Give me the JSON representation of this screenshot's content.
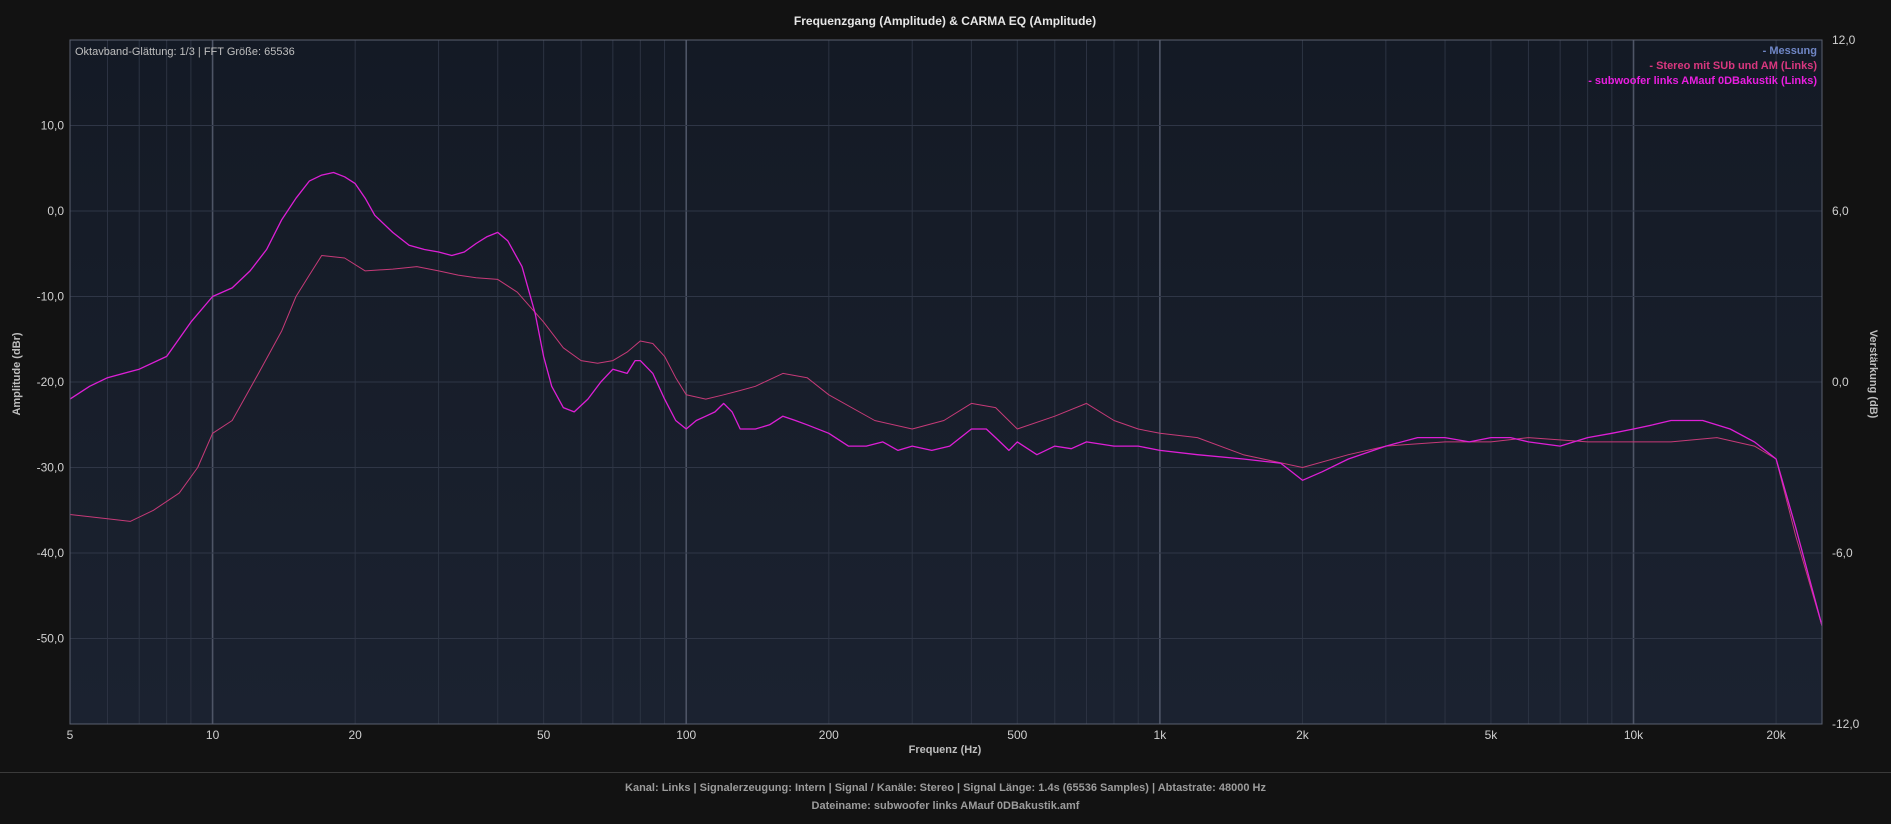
{
  "chart_data": {
    "type": "line",
    "title": "Frequenzgang (Amplitude) & CARMA EQ (Amplitude)",
    "xlabel": "Frequenz (Hz)",
    "ylabel": "Amplitude (dBr)",
    "y2label": "Verstärkung (dB)",
    "xscale": "log",
    "xlim": [
      5,
      25000
    ],
    "ylim": [
      -60,
      20
    ],
    "y2lim": [
      -12,
      12
    ],
    "info_text": "Oktavband-Glättung: 1/3 | FFT Größe: 65536",
    "legend_position": "top-right",
    "grid": true,
    "x_ticks": [
      {
        "value": 5,
        "label": "5"
      },
      {
        "value": 10,
        "label": "10"
      },
      {
        "value": 20,
        "label": "20"
      },
      {
        "value": 50,
        "label": "50"
      },
      {
        "value": 100,
        "label": "100"
      },
      {
        "value": 200,
        "label": "200"
      },
      {
        "value": 500,
        "label": "500"
      },
      {
        "value": 1000,
        "label": "1k"
      },
      {
        "value": 2000,
        "label": "2k"
      },
      {
        "value": 5000,
        "label": "5k"
      },
      {
        "value": 10000,
        "label": "10k"
      },
      {
        "value": 20000,
        "label": "20k"
      }
    ],
    "y_ticks": [
      {
        "value": 10,
        "label": "10,0"
      },
      {
        "value": 0,
        "label": "0,0"
      },
      {
        "value": -10,
        "label": "-10,0"
      },
      {
        "value": -20,
        "label": "-20,0"
      },
      {
        "value": -30,
        "label": "-30,0"
      },
      {
        "value": -40,
        "label": "-40,0"
      },
      {
        "value": -50,
        "label": "-50,0"
      }
    ],
    "y2_ticks": [
      {
        "value": 12,
        "label": "12,0"
      },
      {
        "value": 6,
        "label": "6,0"
      },
      {
        "value": 0,
        "label": "0,0"
      },
      {
        "value": -6,
        "label": "-6,0"
      },
      {
        "value": -12,
        "label": "-12,0"
      }
    ],
    "legend": [
      {
        "label": "- Messung",
        "color": "#6f86c6"
      },
      {
        "label": "- Stereo mit SUb und AM (Links)",
        "color": "#d9377f"
      },
      {
        "label": "- subwoofer links AMauf 0DBakustik (Links)",
        "color": "#e91ee0"
      }
    ],
    "series": [
      {
        "name": "Stereo mit SUb und AM (Links)",
        "color": "#c63a78",
        "width": 1,
        "x": [
          5,
          6,
          6.7,
          7.5,
          8.5,
          9.3,
          10,
          11,
          12.5,
          14,
          15,
          16,
          17,
          19,
          21,
          24,
          27,
          30,
          33,
          36,
          40,
          44,
          50,
          55,
          60,
          65,
          70,
          75,
          80,
          85,
          90,
          95,
          100,
          110,
          120,
          130,
          140,
          160,
          180,
          200,
          250,
          300,
          350,
          400,
          450,
          500,
          600,
          700,
          800,
          900,
          1000,
          1200,
          1500,
          2000,
          2500,
          3000,
          4000,
          5000,
          6000,
          8000,
          10000,
          12000,
          15000,
          18000,
          20000,
          22000,
          25000
        ],
        "y": [
          -35.5,
          -36,
          -36.3,
          -35,
          -33,
          -30,
          -26,
          -24.5,
          -19,
          -14,
          -10,
          -7.5,
          -5.2,
          -5.5,
          -7,
          -6.8,
          -6.5,
          -7,
          -7.5,
          -7.8,
          -8,
          -9.5,
          -13,
          -16,
          -17.5,
          -17.8,
          -17.5,
          -16.5,
          -15.2,
          -15.5,
          -17,
          -19.5,
          -21.5,
          -22,
          -21.5,
          -21,
          -20.5,
          -19,
          -19.5,
          -21.5,
          -24.5,
          -25.5,
          -24.5,
          -22.5,
          -23,
          -25.5,
          -24,
          -22.5,
          -24.5,
          -25.5,
          -26,
          -26.5,
          -28.5,
          -30,
          -28.5,
          -27.5,
          -27,
          -27,
          -26.5,
          -27,
          -27,
          -27,
          -26.5,
          -27.5,
          -29,
          -38,
          -48.5
        ]
      },
      {
        "name": "subwoofer links AMauf 0DBakustik (Links)",
        "color": "#dd1fd6",
        "width": 1.3,
        "x": [
          5,
          5.5,
          6,
          7,
          8,
          9,
          10,
          11,
          12,
          13,
          14,
          15,
          16,
          17,
          18,
          19,
          20,
          21,
          22,
          24,
          26,
          28,
          30,
          32,
          34,
          36,
          38,
          40,
          42,
          45,
          48,
          50,
          52,
          55,
          58,
          62,
          66,
          70,
          75,
          78,
          80,
          85,
          90,
          95,
          100,
          105,
          110,
          115,
          120,
          125,
          130,
          140,
          150,
          160,
          170,
          180,
          200,
          220,
          240,
          260,
          280,
          300,
          330,
          360,
          400,
          430,
          450,
          480,
          500,
          550,
          600,
          650,
          700,
          800,
          900,
          1000,
          1200,
          1500,
          1800,
          2000,
          2200,
          2500,
          3000,
          3500,
          4000,
          4500,
          5000,
          5500,
          6000,
          7000,
          8000,
          9000,
          10000,
          11000,
          12000,
          14000,
          16000,
          18000,
          20000,
          22000,
          25000
        ],
        "y": [
          -22,
          -20.5,
          -19.5,
          -18.5,
          -17,
          -13,
          -10,
          -9,
          -7,
          -4.5,
          -1,
          1.5,
          3.5,
          4.2,
          4.5,
          4,
          3.2,
          1.5,
          -0.5,
          -2.5,
          -4,
          -4.5,
          -4.8,
          -5.2,
          -4.8,
          -3.8,
          -3,
          -2.5,
          -3.5,
          -6.5,
          -12,
          -17,
          -20.5,
          -23,
          -23.5,
          -22,
          -20,
          -18.5,
          -19,
          -17.5,
          -17.5,
          -19,
          -22,
          -24.5,
          -25.5,
          -24.5,
          -24,
          -23.5,
          -22.5,
          -23.5,
          -25.5,
          -25.5,
          -25,
          -24,
          -24.5,
          -25,
          -26,
          -27.5,
          -27.5,
          -27,
          -28,
          -27.5,
          -28,
          -27.5,
          -25.5,
          -25.5,
          -26.5,
          -28,
          -27,
          -28.5,
          -27.5,
          -27.8,
          -27,
          -27.5,
          -27.5,
          -28,
          -28.5,
          -29,
          -29.5,
          -31.5,
          -30.5,
          -29,
          -27.5,
          -26.5,
          -26.5,
          -27,
          -26.5,
          -26.5,
          -27,
          -27.5,
          -26.5,
          -26,
          -25.5,
          -25,
          -24.5,
          -24.5,
          -25.5,
          -27,
          -29,
          -37,
          -48.5
        ]
      }
    ]
  },
  "footer": {
    "line1": "Kanal: Links  |  Signalerzeugung: Intern  |  Signal / Kanäle: Stereo  |  Signal Länge: 1.4s (65536 Samples)  |  Abtastrate: 48000 Hz",
    "line2": "Dateiname: subwoofer links AMauf 0DBakustik.amf"
  }
}
